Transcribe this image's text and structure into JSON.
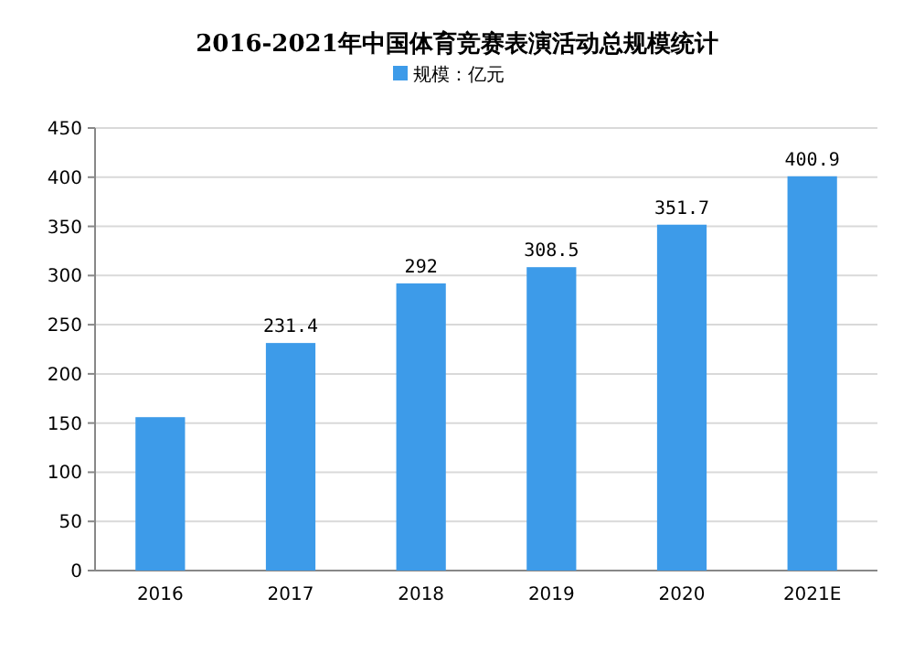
{
  "chart_data": {
    "type": "bar",
    "title": "2016-2021年中国体育竞赛表演活动总规模统计",
    "categories": [
      "2016",
      "2017",
      "2018",
      "2019",
      "2020",
      "2021E"
    ],
    "series": [
      {
        "name": "规模：亿元",
        "color": "#3d9be9",
        "values": [
          156,
          231.4,
          292,
          308.5,
          351.7,
          400.9
        ],
        "value_labels": [
          null,
          "231.4",
          "292",
          "308.5",
          "351.7",
          "400.9"
        ]
      }
    ],
    "ylim": [
      0,
      450
    ],
    "yticks": [
      0,
      50,
      100,
      150,
      200,
      250,
      300,
      350,
      400,
      450
    ],
    "grid": "y",
    "legend": "top"
  }
}
